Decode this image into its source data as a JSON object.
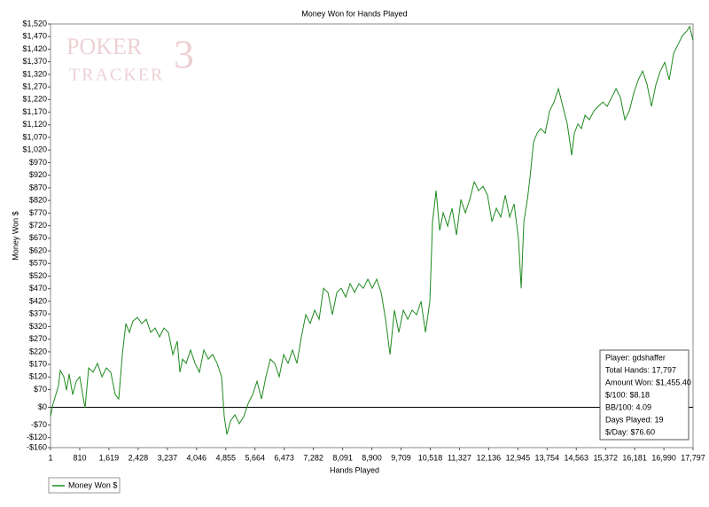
{
  "chart_data": {
    "type": "line",
    "title": "Money Won for Hands Played",
    "xlabel": "Hands Played",
    "ylabel": "Money Won $",
    "watermark": [
      "POKER",
      "TRACKER",
      "3"
    ],
    "info_box": [
      "Player: gdshaffer",
      "Total Hands: 17,797",
      "Amount Won: $1,455.40",
      "$/100: $8.18",
      "BB/100: 4.09",
      "Days Played: 19",
      "$/Day: $76.60"
    ],
    "xlim": [
      1,
      17797
    ],
    "ylim": [
      -160,
      1520
    ],
    "xticks": [
      1,
      {
        "value": 810,
        "label": "810"
      },
      {
        "value": 1619,
        "label": "1,619"
      },
      {
        "value": 2428,
        "label": "2,428"
      },
      {
        "value": 3237,
        "label": "3,237"
      },
      {
        "value": 4046,
        "label": "4,046"
      },
      {
        "value": 4855,
        "label": "4,855"
      },
      {
        "value": 5664,
        "label": "5,664"
      },
      {
        "value": 6473,
        "label": "6,473"
      },
      {
        "value": 7282,
        "label": "7,282"
      },
      {
        "value": 8091,
        "label": "8,091"
      },
      {
        "value": 8900,
        "label": "8,900"
      },
      {
        "value": 9709,
        "label": "9,709"
      },
      {
        "value": 10518,
        "label": "10,518"
      },
      {
        "value": 11327,
        "label": "11,327"
      },
      {
        "value": 12136,
        "label": "12,136"
      },
      {
        "value": 12945,
        "label": "12,945"
      },
      {
        "value": 13754,
        "label": "13,754"
      },
      {
        "value": 14563,
        "label": "14,563"
      },
      {
        "value": 15372,
        "label": "15,372"
      },
      {
        "value": 16181,
        "label": "16,181"
      },
      {
        "value": 16990,
        "label": "16,990"
      },
      {
        "value": 17797,
        "label": "17,797"
      }
    ],
    "yticks": [
      {
        "value": 1520,
        "label": "$1,520"
      },
      {
        "value": 1470,
        "label": "$1,470"
      },
      {
        "value": 1420,
        "label": "$1,420"
      },
      {
        "value": 1370,
        "label": "$1,370"
      },
      {
        "value": 1320,
        "label": "$1,320"
      },
      {
        "value": 1270,
        "label": "$1,270"
      },
      {
        "value": 1220,
        "label": "$1,220"
      },
      {
        "value": 1170,
        "label": "$1,170"
      },
      {
        "value": 1120,
        "label": "$1,120"
      },
      {
        "value": 1070,
        "label": "$1,070"
      },
      {
        "value": 1020,
        "label": "$1,020"
      },
      {
        "value": 970,
        "label": "$970"
      },
      {
        "value": 920,
        "label": "$920"
      },
      {
        "value": 870,
        "label": "$870"
      },
      {
        "value": 820,
        "label": "$820"
      },
      {
        "value": 770,
        "label": "$770"
      },
      {
        "value": 720,
        "label": "$720"
      },
      {
        "value": 670,
        "label": "$670"
      },
      {
        "value": 620,
        "label": "$620"
      },
      {
        "value": 570,
        "label": "$570"
      },
      {
        "value": 520,
        "label": "$520"
      },
      {
        "value": 470,
        "label": "$470"
      },
      {
        "value": 420,
        "label": "$420"
      },
      {
        "value": 370,
        "label": "$370"
      },
      {
        "value": 320,
        "label": "$320"
      },
      {
        "value": 270,
        "label": "$270"
      },
      {
        "value": 220,
        "label": "$220"
      },
      {
        "value": 170,
        "label": "$170"
      },
      {
        "value": 120,
        "label": "$120"
      },
      {
        "value": 70,
        "label": "$70"
      },
      {
        "value": 0,
        "label": "$0"
      },
      {
        "value": -70,
        "label": "-$70"
      },
      {
        "value": -120,
        "label": "-$120"
      },
      {
        "value": -160,
        "label": "-$160"
      }
    ],
    "zero_line": 0,
    "x": [
      1,
      75,
      148,
      222,
      271,
      369,
      443,
      517,
      615,
      713,
      811,
      934,
      958,
      1057,
      1179,
      1302,
      1425,
      1548,
      1670,
      1793,
      1891,
      1990,
      2088,
      2186,
      2284,
      2407,
      2530,
      2652,
      2775,
      2898,
      3021,
      3143,
      3266,
      3389,
      3512,
      3585,
      3659,
      3757,
      3880,
      4003,
      4125,
      4248,
      4371,
      4494,
      4616,
      4739,
      4813,
      4887,
      4985,
      5107,
      5230,
      5353,
      5476,
      5598,
      5721,
      5844,
      5967,
      6089,
      6212,
      6335,
      6458,
      6580,
      6703,
      6826,
      6949,
      7071,
      7194,
      7317,
      7440,
      7562,
      7685,
      7808,
      7931,
      8053,
      8176,
      8299,
      8422,
      8544,
      8667,
      8790,
      8913,
      9035,
      9158,
      9281,
      9404,
      9526,
      9649,
      9772,
      9895,
      10017,
      10140,
      10263,
      10386,
      10508,
      10582,
      10680,
      10779,
      10877,
      11000,
      11122,
      11245,
      11368,
      11491,
      11613,
      11736,
      11859,
      11981,
      12104,
      12227,
      12350,
      12472,
      12595,
      12718,
      12841,
      12963,
      13037,
      13111,
      13209,
      13282,
      13381,
      13479,
      13577,
      13700,
      13823,
      13945,
      14068,
      14191,
      14314,
      14436,
      14510,
      14608,
      14706,
      14805,
      14927,
      15050,
      15173,
      15296,
      15418,
      15541,
      15664,
      15787,
      15909,
      16032,
      16155,
      16278,
      16400,
      16523,
      16646,
      16769,
      16891,
      17014,
      17137,
      17260,
      17382,
      17505,
      17628,
      17702,
      17797
    ],
    "series": [
      {
        "name": "Money Won $",
        "color": "#1f8a1f",
        "values": [
          -37,
          15,
          50,
          86,
          146,
          121,
          68,
          132,
          50,
          103,
          121,
          15,
          -2,
          156,
          139,
          174,
          121,
          156,
          139,
          50,
          33,
          209,
          332,
          297,
          342,
          356,
          332,
          349,
          297,
          314,
          279,
          314,
          297,
          209,
          262,
          139,
          191,
          174,
          227,
          174,
          139,
          227,
          191,
          209,
          174,
          121,
          -37,
          -108,
          -55,
          -30,
          -65,
          -37,
          15,
          50,
          103,
          33,
          121,
          191,
          174,
          121,
          209,
          174,
          227,
          174,
          279,
          367,
          332,
          385,
          349,
          472,
          455,
          367,
          455,
          472,
          437,
          490,
          455,
          490,
          472,
          508,
          472,
          508,
          455,
          349,
          209,
          385,
          297,
          385,
          349,
          385,
          367,
          420,
          297,
          420,
          736,
          859,
          701,
          771,
          718,
          789,
          683,
          824,
          771,
          824,
          894,
          859,
          876,
          841,
          736,
          789,
          754,
          841,
          754,
          806,
          666,
          472,
          736,
          824,
          912,
          1052,
          1087,
          1105,
          1087,
          1175,
          1210,
          1263,
          1193,
          1123,
          999,
          1087,
          1123,
          1105,
          1158,
          1140,
          1175,
          1193,
          1210,
          1193,
          1228,
          1263,
          1228,
          1140,
          1175,
          1246,
          1298,
          1333,
          1280,
          1193,
          1280,
          1333,
          1368,
          1298,
          1404,
          1439,
          1474,
          1492,
          1510,
          1455
        ]
      }
    ]
  }
}
